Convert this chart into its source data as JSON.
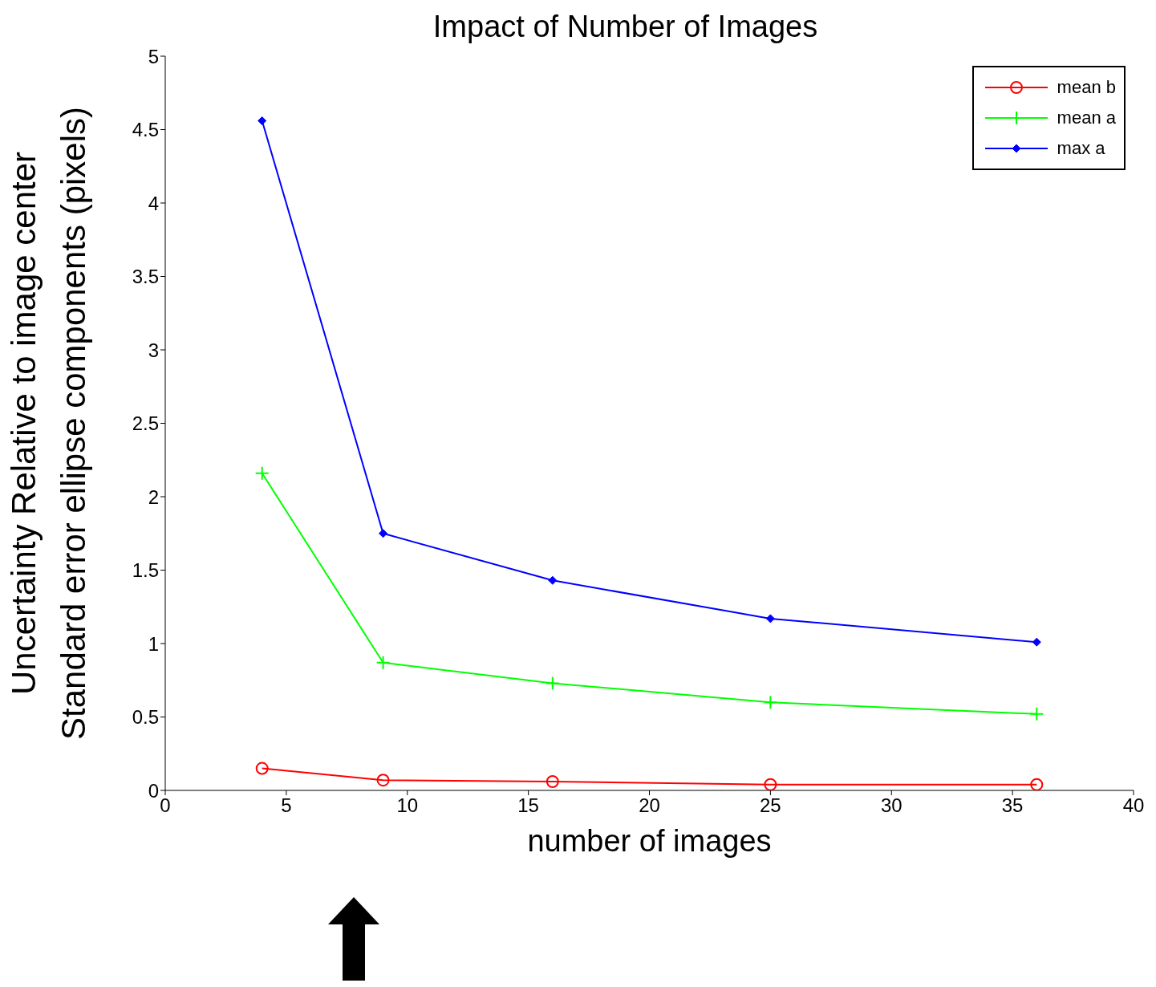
{
  "chart_data": {
    "type": "line",
    "title": "Impact of Number of Images",
    "xlabel": "number of images",
    "ylabel": "Uncertainty Relative to image center\nStandard error ellipse components (pixels)",
    "x": [
      4,
      9,
      16,
      25,
      36
    ],
    "series": [
      {
        "name": "mean b",
        "color": "#ff0000",
        "marker": "circle",
        "values": [
          0.15,
          0.07,
          0.06,
          0.04,
          0.04
        ]
      },
      {
        "name": "mean a",
        "color": "#00ff00",
        "marker": "cross",
        "values": [
          2.16,
          0.87,
          0.73,
          0.6,
          0.52
        ]
      },
      {
        "name": "max a",
        "color": "#0000ff",
        "marker": "diamond",
        "values": [
          4.56,
          1.75,
          1.43,
          1.17,
          1.01
        ]
      }
    ],
    "xlim": [
      0,
      40
    ],
    "xticks": [
      0,
      5,
      10,
      15,
      20,
      25,
      30,
      35,
      40
    ],
    "ylim": [
      0,
      5
    ],
    "yticks": [
      0,
      0.5,
      1,
      1.5,
      2,
      2.5,
      3,
      3.5,
      4,
      4.5,
      5
    ],
    "grid": false,
    "legend": "top right",
    "line_style": "solid"
  }
}
